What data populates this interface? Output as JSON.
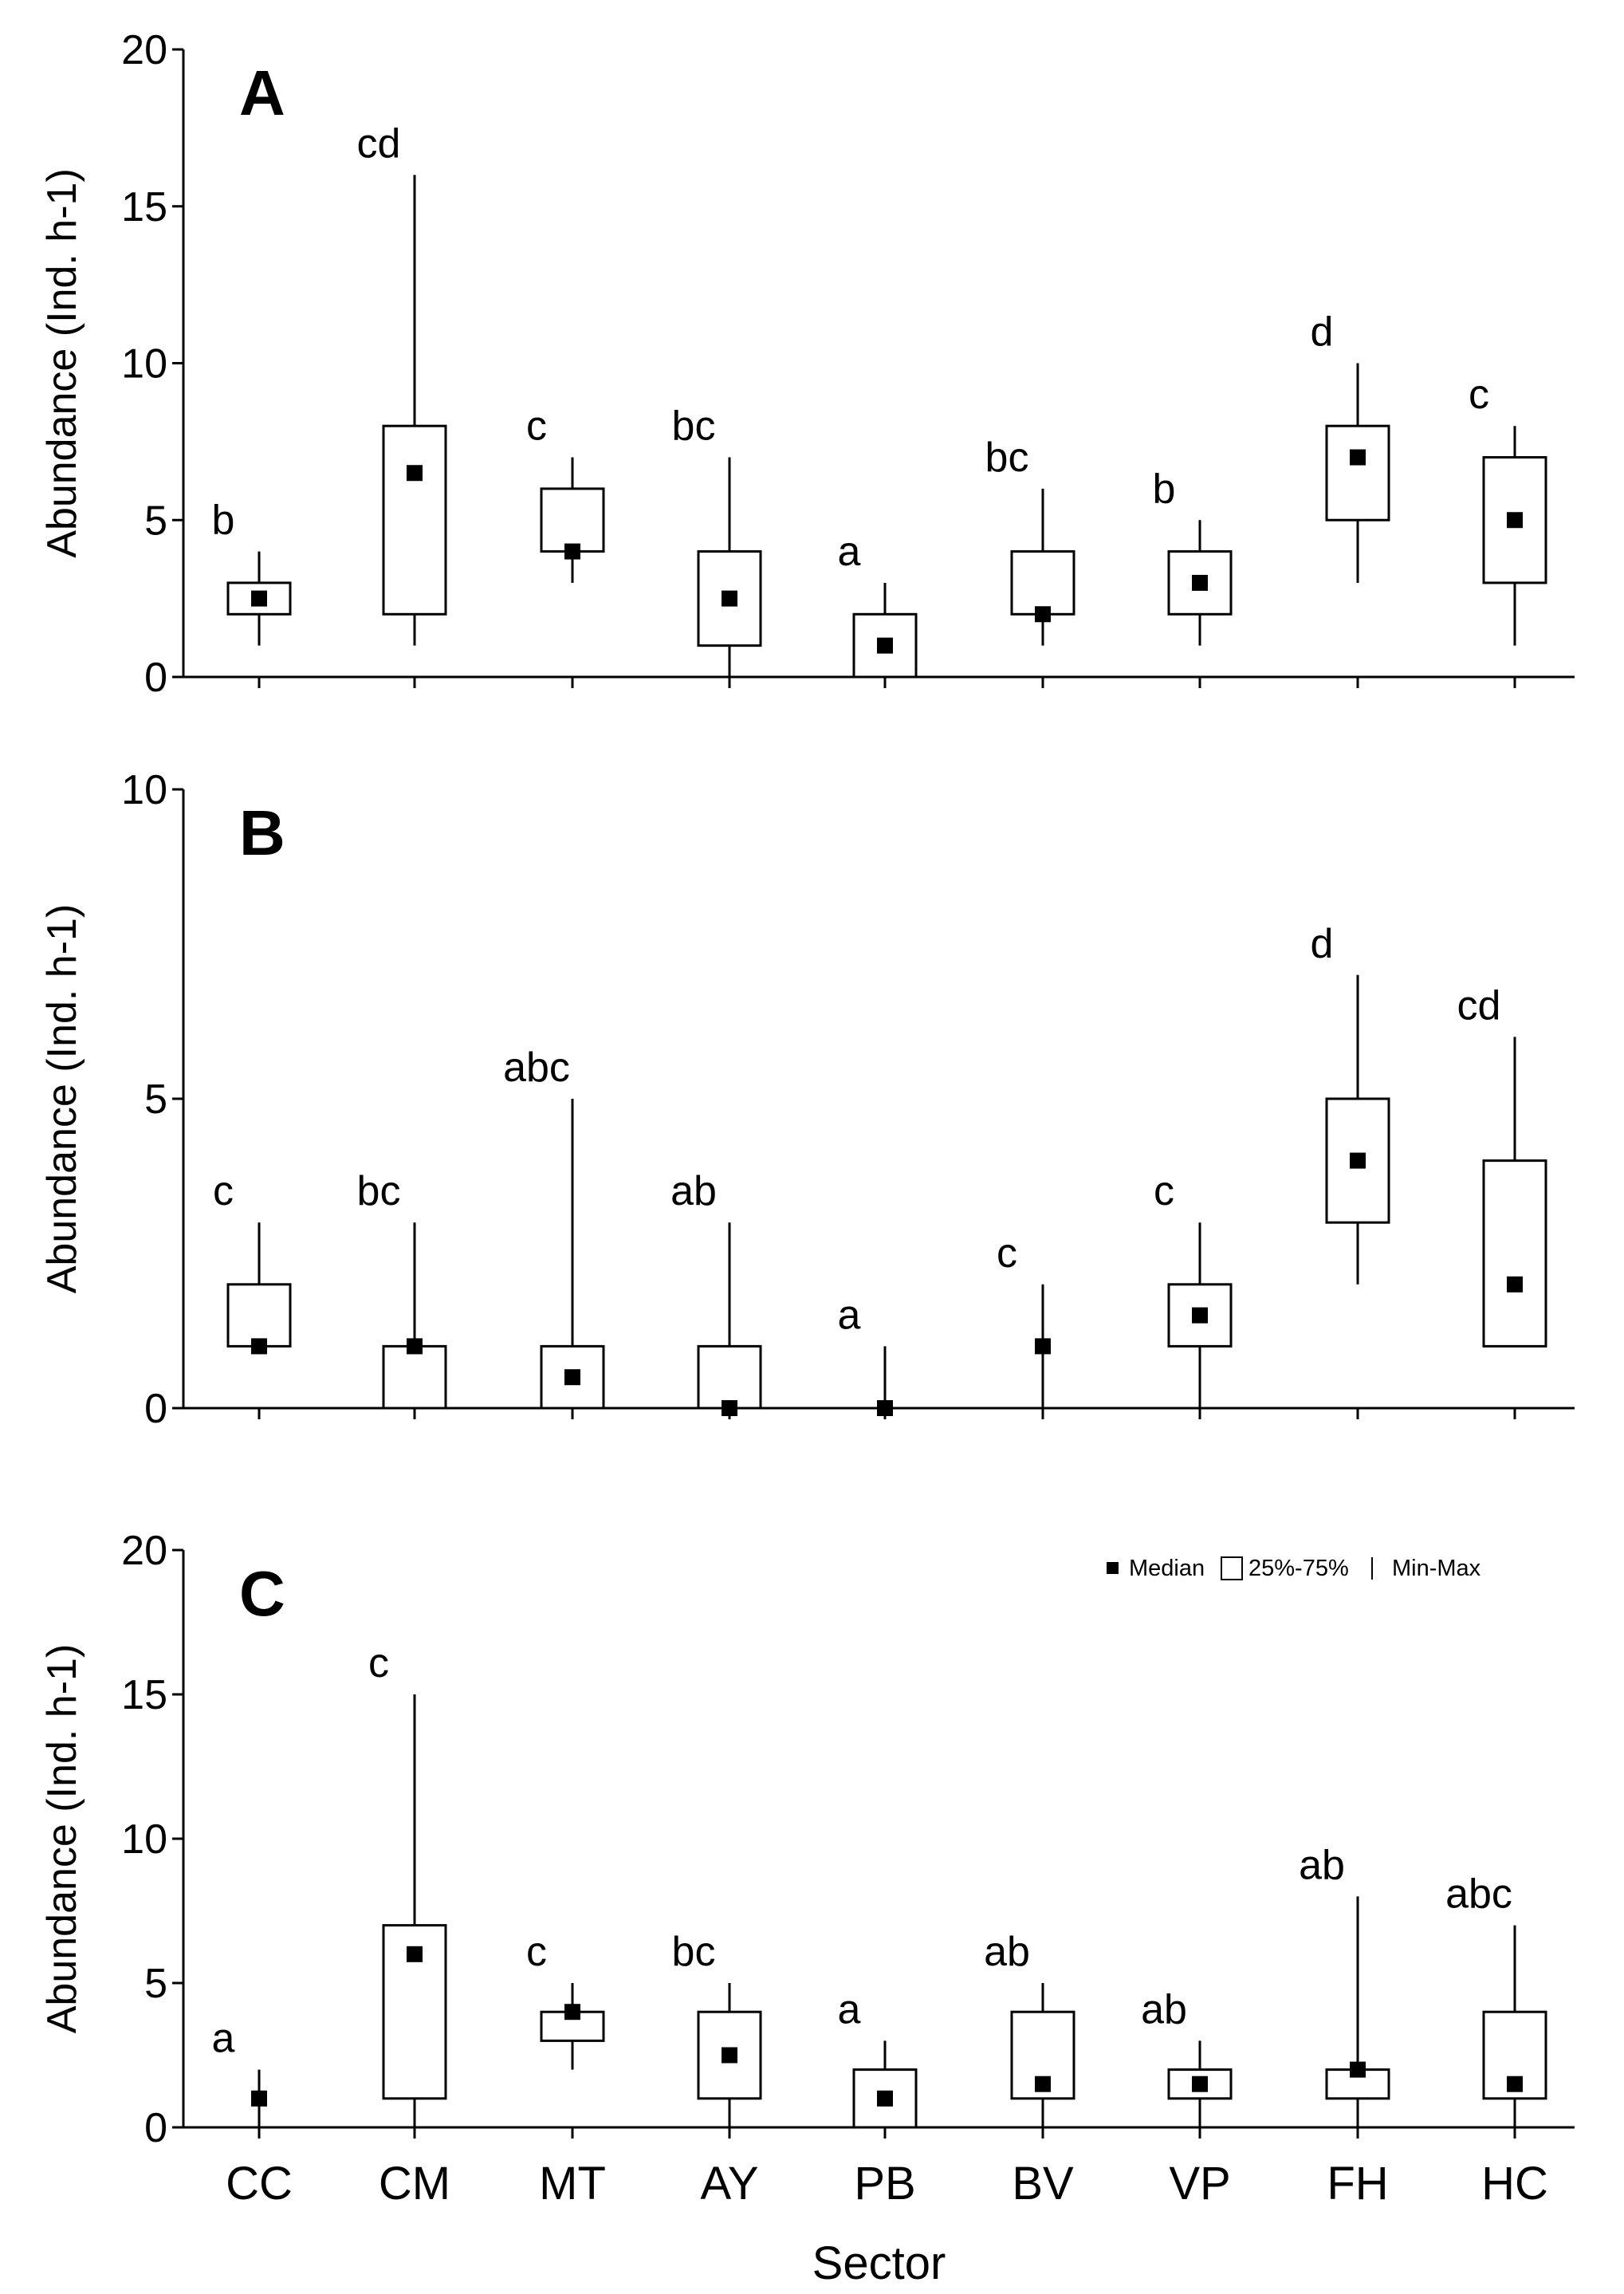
{
  "chart_data": [
    {
      "type": "box",
      "panel": "A",
      "ylabel": "Abundance (Ind. h-1)",
      "ylim": [
        0,
        20
      ],
      "yticks": [
        0,
        5,
        10,
        15,
        20
      ],
      "categories": [
        "CC",
        "CM",
        "MT",
        "AY",
        "PB",
        "BV",
        "VP",
        "FH",
        "HC"
      ],
      "boxes": [
        {
          "min": 1,
          "q1": 2,
          "median": 2.5,
          "q3": 3,
          "max": 4,
          "letter": "b"
        },
        {
          "min": 1,
          "q1": 2,
          "median": 6.5,
          "q3": 8,
          "max": 16,
          "letter": "cd"
        },
        {
          "min": 3,
          "q1": 4,
          "median": 4,
          "q3": 6,
          "max": 7,
          "letter": "c"
        },
        {
          "min": 0,
          "q1": 1,
          "median": 2.5,
          "q3": 4,
          "max": 7,
          "letter": "bc"
        },
        {
          "min": 0,
          "q1": 0,
          "median": 1,
          "q3": 2,
          "max": 3,
          "letter": "a"
        },
        {
          "min": 1,
          "q1": 2,
          "median": 2,
          "q3": 4,
          "max": 6,
          "letter": "bc"
        },
        {
          "min": 1,
          "q1": 2,
          "median": 3,
          "q3": 4,
          "max": 5,
          "letter": "b"
        },
        {
          "min": 3,
          "q1": 5,
          "median": 7,
          "q3": 8,
          "max": 10,
          "letter": "d"
        },
        {
          "min": 1,
          "q1": 3,
          "median": 5,
          "q3": 7,
          "max": 8,
          "letter": "c"
        }
      ]
    },
    {
      "type": "box",
      "panel": "B",
      "ylabel": "Abundance (Ind. h-1)",
      "ylim": [
        0,
        10
      ],
      "yticks": [
        0,
        5,
        10
      ],
      "categories": [
        "CC",
        "CM",
        "MT",
        "AY",
        "PB",
        "BV",
        "VP",
        "FH",
        "HC"
      ],
      "boxes": [
        {
          "min": 1,
          "q1": 1,
          "median": 1,
          "q3": 2,
          "max": 3,
          "letter": "c"
        },
        {
          "min": 0,
          "q1": 0,
          "median": 1,
          "q3": 1,
          "max": 3,
          "letter": "bc"
        },
        {
          "min": 0,
          "q1": 0,
          "median": 0.5,
          "q3": 1,
          "max": 5,
          "letter": "abc"
        },
        {
          "min": 0,
          "q1": 0,
          "median": 0,
          "q3": 1,
          "max": 3,
          "letter": "ab"
        },
        {
          "min": 0,
          "q1": 0,
          "median": 0,
          "q3": 0,
          "max": 1,
          "letter": "a"
        },
        {
          "min": 0,
          "q1": 1,
          "median": 1,
          "q3": 1,
          "max": 2,
          "letter": "c"
        },
        {
          "min": 0,
          "q1": 1,
          "median": 1.5,
          "q3": 2,
          "max": 3,
          "letter": "c"
        },
        {
          "min": 2,
          "q1": 3,
          "median": 4,
          "q3": 5,
          "max": 7,
          "letter": "d"
        },
        {
          "min": 1,
          "q1": 1,
          "median": 2,
          "q3": 4,
          "max": 6,
          "letter": "cd"
        }
      ]
    },
    {
      "type": "box",
      "panel": "C",
      "ylabel": "Abundance (Ind. h-1)",
      "xlabel": "Sector",
      "ylim": [
        0,
        20
      ],
      "yticks": [
        0,
        5,
        10,
        15,
        20
      ],
      "categories": [
        "CC",
        "CM",
        "MT",
        "AY",
        "PB",
        "BV",
        "VP",
        "FH",
        "HC"
      ],
      "boxes": [
        {
          "min": 0,
          "q1": 1,
          "median": 1,
          "q3": 1,
          "max": 2,
          "letter": "a"
        },
        {
          "min": 0,
          "q1": 1,
          "median": 6,
          "q3": 7,
          "max": 15,
          "letter": "c"
        },
        {
          "min": 2,
          "q1": 3,
          "median": 4,
          "q3": 4,
          "max": 5,
          "letter": "c"
        },
        {
          "min": 0,
          "q1": 1,
          "median": 2.5,
          "q3": 4,
          "max": 5,
          "letter": "bc"
        },
        {
          "min": 0,
          "q1": 0,
          "median": 1,
          "q3": 2,
          "max": 3,
          "letter": "a"
        },
        {
          "min": 0,
          "q1": 1,
          "median": 1.5,
          "q3": 4,
          "max": 5,
          "letter": "ab"
        },
        {
          "min": 0,
          "q1": 1,
          "median": 1.5,
          "q3": 2,
          "max": 3,
          "letter": "ab"
        },
        {
          "min": 0,
          "q1": 1,
          "median": 2,
          "q3": 2,
          "max": 8,
          "letter": "ab"
        },
        {
          "min": 0,
          "q1": 1,
          "median": 1.5,
          "q3": 4,
          "max": 7,
          "letter": "abc"
        }
      ],
      "legend": {
        "position": "top-right",
        "items": [
          "Median",
          "25%-75%",
          "Min-Max"
        ]
      }
    }
  ]
}
